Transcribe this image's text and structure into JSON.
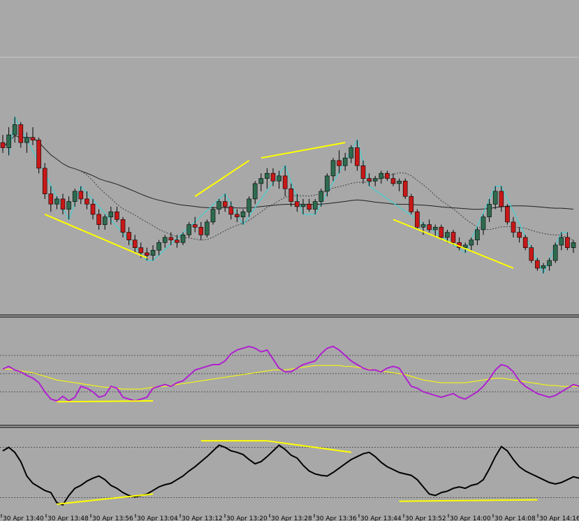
{
  "chart_data": {
    "type": "candlestick",
    "time_labels": [
      "30 Apr 13:40",
      "30 Apr 13:48",
      "30 Apr 13:56",
      "30 Apr 13:04",
      "30 Apr 13:12",
      "30 Apr 13:20",
      "30 Apr 13:28",
      "30 Apr 13:36",
      "30 Apr 13:44",
      "30 Apr 13:52",
      "30 Apr 14:00",
      "30 Apr 14:08",
      "30 Apr 14:16"
    ],
    "price_panel": {
      "ylim": [
        0,
        100
      ],
      "candles": [
        [
          52,
          55,
          48,
          50
        ],
        [
          50,
          58,
          47,
          55
        ],
        [
          55,
          62,
          52,
          59
        ],
        [
          59,
          60,
          50,
          52
        ],
        [
          52,
          56,
          48,
          54
        ],
        [
          54,
          58,
          51,
          53
        ],
        [
          53,
          54,
          40,
          42
        ],
        [
          42,
          44,
          30,
          32
        ],
        [
          32,
          35,
          25,
          28
        ],
        [
          28,
          31,
          26,
          30
        ],
        [
          30,
          32,
          24,
          26
        ],
        [
          26,
          31,
          22,
          29
        ],
        [
          29,
          34,
          27,
          33
        ],
        [
          33,
          35,
          28,
          30
        ],
        [
          30,
          33,
          26,
          28
        ],
        [
          28,
          30,
          22,
          24
        ],
        [
          24,
          26,
          18,
          20
        ],
        [
          20,
          24,
          18,
          23
        ],
        [
          23,
          27,
          20,
          25
        ],
        [
          25,
          27,
          21,
          22
        ],
        [
          22,
          23,
          15,
          17
        ],
        [
          17,
          19,
          12,
          14
        ],
        [
          14,
          16,
          9,
          11
        ],
        [
          11,
          13,
          7,
          9
        ],
        [
          9,
          11,
          6,
          8
        ],
        [
          8,
          12,
          6,
          10
        ],
        [
          10,
          14,
          8,
          13
        ],
        [
          13,
          16,
          11,
          15
        ],
        [
          15,
          17,
          12,
          14
        ],
        [
          14,
          16,
          11,
          13
        ],
        [
          13,
          17,
          12,
          16
        ],
        [
          16,
          21,
          15,
          20
        ],
        [
          20,
          23,
          17,
          19
        ],
        [
          19,
          21,
          14,
          16
        ],
        [
          16,
          22,
          15,
          21
        ],
        [
          21,
          27,
          20,
          26
        ],
        [
          26,
          30,
          24,
          29
        ],
        [
          29,
          32,
          25,
          27
        ],
        [
          27,
          29,
          22,
          24
        ],
        [
          24,
          26,
          21,
          23
        ],
        [
          23,
          26,
          20,
          25
        ],
        [
          25,
          31,
          23,
          30
        ],
        [
          30,
          37,
          28,
          36
        ],
        [
          36,
          40,
          33,
          38
        ],
        [
          38,
          42,
          34,
          40
        ],
        [
          40,
          42,
          35,
          37
        ],
        [
          37,
          41,
          34,
          39
        ],
        [
          39,
          43,
          31,
          34
        ],
        [
          34,
          36,
          27,
          29
        ],
        [
          29,
          32,
          25,
          27
        ],
        [
          27,
          30,
          24,
          28
        ],
        [
          28,
          30,
          25,
          26
        ],
        [
          26,
          30,
          24,
          29
        ],
        [
          29,
          34,
          27,
          33
        ],
        [
          33,
          40,
          31,
          39
        ],
        [
          39,
          46,
          37,
          45
        ],
        [
          45,
          49,
          40,
          43
        ],
        [
          43,
          48,
          41,
          46
        ],
        [
          46,
          51,
          44,
          50
        ],
        [
          50,
          53,
          41,
          43
        ],
        [
          43,
          45,
          36,
          38
        ],
        [
          38,
          40,
          35,
          37
        ],
        [
          37,
          39,
          35,
          38
        ],
        [
          38,
          41,
          36,
          40
        ],
        [
          40,
          41,
          37,
          38
        ],
        [
          38,
          40,
          35,
          36
        ],
        [
          36,
          38,
          33,
          37
        ],
        [
          37,
          38,
          30,
          31
        ],
        [
          31,
          32,
          24,
          25
        ],
        [
          25,
          26,
          18,
          19
        ],
        [
          19,
          21,
          16,
          20
        ],
        [
          20,
          22,
          17,
          18
        ],
        [
          18,
          20,
          15,
          19
        ],
        [
          19,
          20,
          14,
          15
        ],
        [
          15,
          18,
          13,
          17
        ],
        [
          17,
          18,
          12,
          13
        ],
        [
          13,
          15,
          10,
          11
        ],
        [
          11,
          13,
          9,
          12
        ],
        [
          12,
          15,
          10,
          14
        ],
        [
          14,
          19,
          12,
          18
        ],
        [
          18,
          24,
          16,
          23
        ],
        [
          23,
          30,
          21,
          28
        ],
        [
          28,
          35,
          26,
          33
        ],
        [
          33,
          35,
          25,
          27
        ],
        [
          27,
          28,
          20,
          21
        ],
        [
          21,
          23,
          15,
          17
        ],
        [
          17,
          19,
          13,
          15
        ],
        [
          15,
          16,
          10,
          11
        ],
        [
          11,
          12,
          5,
          6
        ],
        [
          6,
          7,
          2,
          3
        ],
        [
          3,
          5,
          1,
          4
        ],
        [
          4,
          7,
          2,
          6
        ],
        [
          6,
          13,
          5,
          12
        ],
        [
          12,
          17,
          10,
          15
        ],
        [
          15,
          17,
          10,
          11
        ],
        [
          11,
          14,
          9,
          13
        ]
      ]
    },
    "rsi_panel": {
      "ylim": [
        0,
        100
      ],
      "levels": [
        70,
        50,
        30
      ],
      "rsi": [
        55,
        58,
        54,
        52,
        48,
        45,
        40,
        30,
        22,
        20,
        25,
        20,
        24,
        36,
        34,
        30,
        24,
        26,
        36,
        34,
        24,
        22,
        20,
        22,
        24,
        34,
        36,
        38,
        36,
        40,
        42,
        48,
        54,
        56,
        58,
        60,
        60,
        64,
        72,
        76,
        78,
        80,
        78,
        74,
        76,
        66,
        56,
        52,
        52,
        56,
        60,
        62,
        64,
        72,
        78,
        80,
        76,
        70,
        64,
        60,
        56,
        54,
        54,
        52,
        56,
        58,
        56,
        46,
        36,
        34,
        30,
        28,
        26,
        24,
        26,
        28,
        24,
        22,
        26,
        30,
        36,
        44,
        54,
        60,
        58,
        52,
        42,
        36,
        32,
        28,
        26,
        24,
        26,
        30,
        34,
        38,
        36
      ],
      "signal": [
        55,
        55,
        54,
        53,
        52,
        51,
        49,
        47,
        45,
        43,
        42,
        41,
        40,
        39,
        38,
        37,
        36,
        35,
        35,
        34,
        33,
        33,
        33,
        33,
        34,
        35,
        36,
        36,
        37,
        38,
        39,
        40,
        41,
        42,
        43,
        44,
        45,
        46,
        47,
        48,
        49,
        50,
        51,
        52,
        53,
        54,
        54,
        54,
        55,
        56,
        57,
        58,
        59,
        59,
        59,
        59,
        59,
        58,
        58,
        57,
        56,
        55,
        54,
        53,
        52,
        51,
        50,
        49,
        47,
        45,
        43,
        42,
        41,
        40,
        40,
        40,
        40,
        40,
        41,
        42,
        43,
        44,
        45,
        45,
        44,
        43,
        42,
        41,
        40,
        39,
        38,
        37,
        37,
        36,
        36,
        36,
        36
      ]
    },
    "lower_panel": {
      "ylim": [
        0,
        100
      ],
      "levels": [
        85,
        15
      ],
      "values": [
        80,
        85,
        78,
        65,
        45,
        35,
        30,
        25,
        22,
        8,
        5,
        18,
        28,
        32,
        38,
        42,
        45,
        40,
        32,
        28,
        22,
        18,
        16,
        18,
        20,
        25,
        30,
        33,
        35,
        40,
        45,
        52,
        58,
        65,
        72,
        80,
        88,
        85,
        80,
        78,
        75,
        68,
        62,
        65,
        72,
        80,
        88,
        82,
        74,
        70,
        60,
        52,
        48,
        46,
        45,
        50,
        56,
        62,
        68,
        72,
        76,
        78,
        72,
        64,
        58,
        54,
        50,
        48,
        46,
        40,
        30,
        20,
        18,
        22,
        24,
        28,
        30,
        28,
        32,
        34,
        40,
        55,
        72,
        86,
        80,
        68,
        58,
        52,
        48,
        44,
        40,
        36,
        34,
        36,
        40,
        44,
        42
      ]
    },
    "trend_lines": {
      "price": [
        {
          "from": [
            7,
            24
          ],
          "to": [
            24,
            7
          ],
          "color": "#ffff00"
        },
        {
          "from": [
            32,
            31
          ],
          "to": [
            41,
            45
          ],
          "color": "#ffff00"
        },
        {
          "from": [
            43,
            46
          ],
          "to": [
            57,
            52
          ],
          "color": "#ffff00"
        },
        {
          "from": [
            65,
            22
          ],
          "to": [
            85,
            3
          ],
          "color": "#ffff00"
        }
      ],
      "rsi": [
        {
          "from": [
            9,
            19
          ],
          "to": [
            25,
            20
          ],
          "color": "#ffff00"
        }
      ],
      "lower": [
        {
          "from": [
            9,
            6
          ],
          "to": [
            25,
            20
          ],
          "color": "#ffff00"
        },
        {
          "from": [
            33,
            94
          ],
          "to": [
            44,
            94
          ],
          "color": "#ffff00"
        },
        {
          "from": [
            44,
            94
          ],
          "to": [
            58,
            78
          ],
          "color": "#ffff00"
        },
        {
          "from": [
            66,
            10
          ],
          "to": [
            89,
            12
          ],
          "color": "#ffff00"
        }
      ]
    },
    "colors": {
      "background": "#a8a8a8",
      "bull": "#2e6b4f",
      "bear": "#c81818",
      "zigzag": "#40d0d0",
      "rsi": "#b020d0",
      "signal": "#ffff00",
      "lower": "#000000",
      "trend": "#ffff00"
    }
  }
}
